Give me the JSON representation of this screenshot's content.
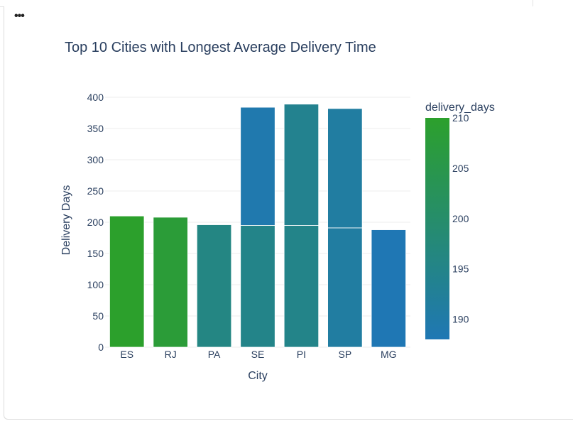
{
  "menu": {
    "label": "•••"
  },
  "colors": {
    "scale": [
      "#1f77b4",
      "#2ca02c"
    ],
    "grid": "#eeeeee",
    "text": "#2a3f5f"
  },
  "chart_data": {
    "type": "bar",
    "barmode": "stack",
    "title": "Top 10 Cities with Longest Average Delivery Time",
    "xlabel": "City",
    "ylabel": "Delivery Days",
    "ylim": [
      0,
      400
    ],
    "yticks": [
      0,
      50,
      100,
      150,
      200,
      250,
      300,
      350,
      400
    ],
    "categories": [
      "ES",
      "RJ",
      "PA",
      "SE",
      "PI",
      "SP",
      "MG"
    ],
    "stacks": [
      [
        210
      ],
      [
        208
      ],
      [
        196
      ],
      [
        195,
        189
      ],
      [
        195,
        194
      ],
      [
        191,
        191
      ],
      [
        188
      ]
    ],
    "colorbar": {
      "title": "delivery_days",
      "range": [
        188,
        210
      ],
      "ticks": [
        190,
        195,
        200,
        205,
        210
      ]
    }
  }
}
